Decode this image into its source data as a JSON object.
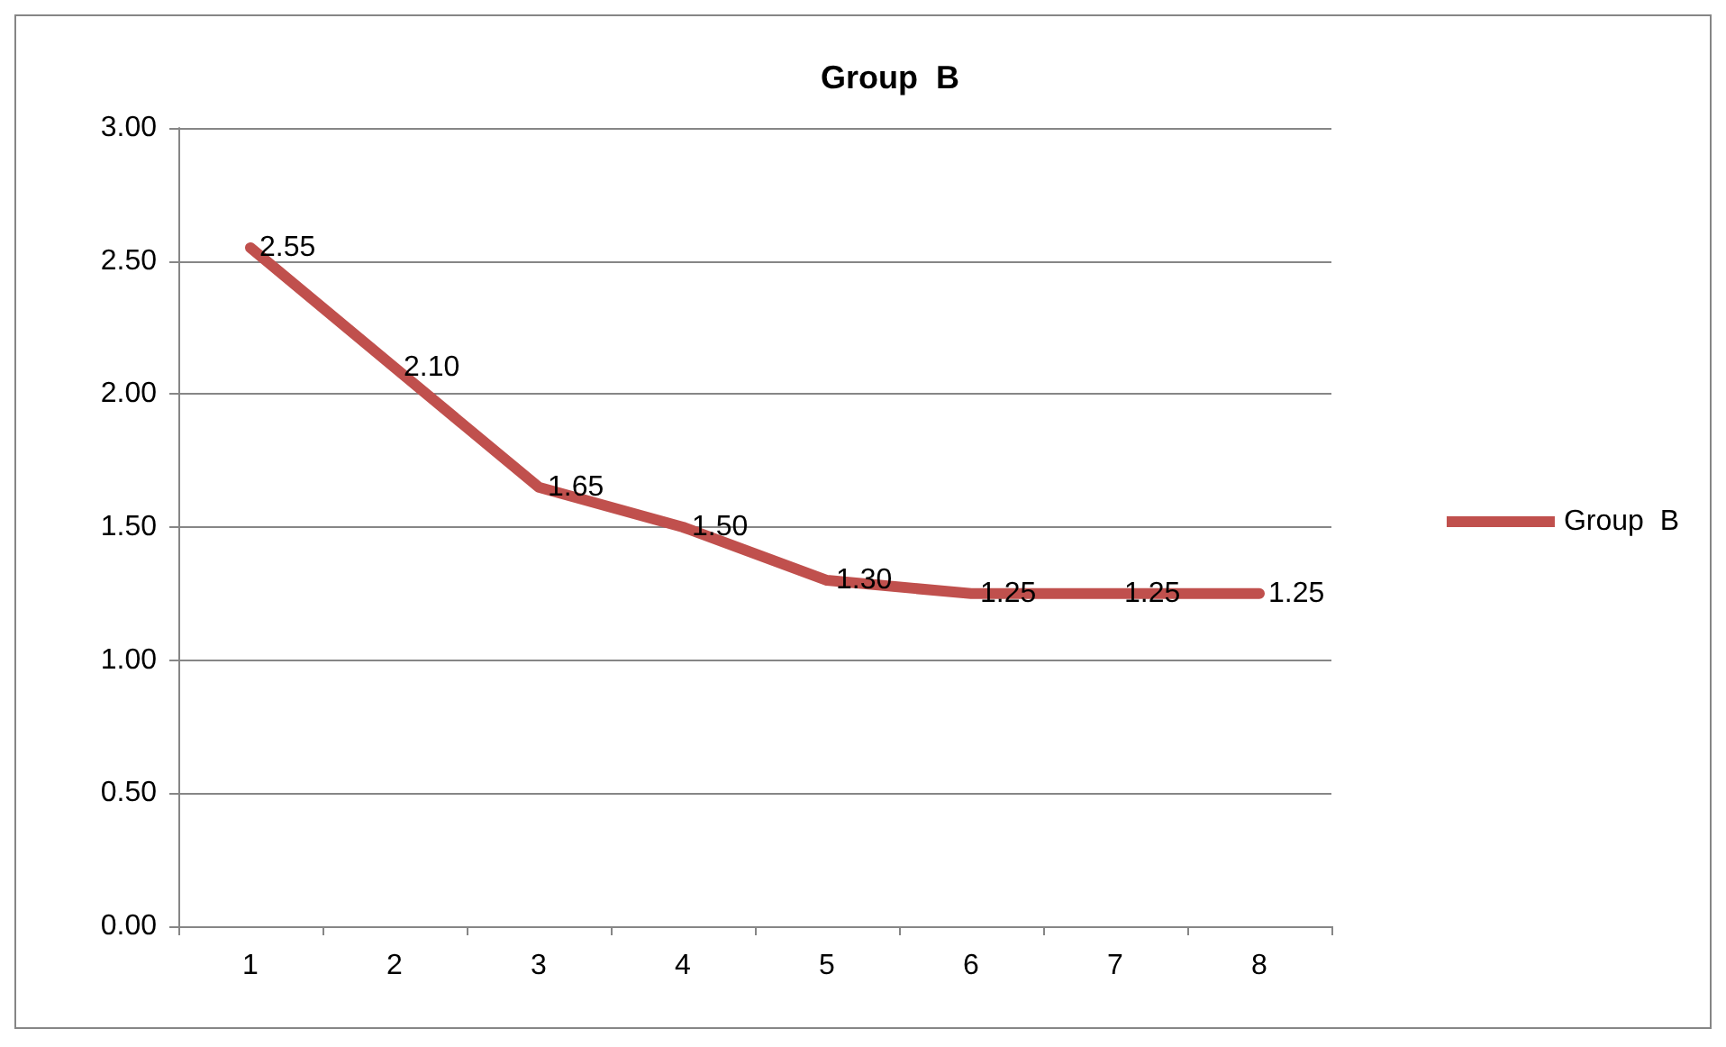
{
  "chart_data": {
    "type": "line",
    "title": "Group  B",
    "categories": [
      "1",
      "2",
      "3",
      "4",
      "5",
      "6",
      "7",
      "8"
    ],
    "series": [
      {
        "name": "Group  B",
        "color": "#c0504d",
        "values": [
          2.55,
          2.1,
          1.65,
          1.5,
          1.3,
          1.25,
          1.25,
          1.25
        ],
        "value_labels": [
          "2.55",
          "2.10",
          "1.65",
          "1.50",
          "1.30",
          "1.25",
          "1.25",
          "1.25"
        ]
      }
    ],
    "ylim": [
      0,
      3
    ],
    "yticks": [
      {
        "value": 0,
        "label": "0.00"
      },
      {
        "value": 0.5,
        "label": "0.50"
      },
      {
        "value": 1,
        "label": "1.00"
      },
      {
        "value": 1.5,
        "label": "1.50"
      },
      {
        "value": 2,
        "label": "2.00"
      },
      {
        "value": 2.5,
        "label": "2.50"
      },
      {
        "value": 3,
        "label": "3.00"
      }
    ],
    "grid": "y",
    "legend": "right",
    "marker": "none",
    "line_style": "solid"
  }
}
